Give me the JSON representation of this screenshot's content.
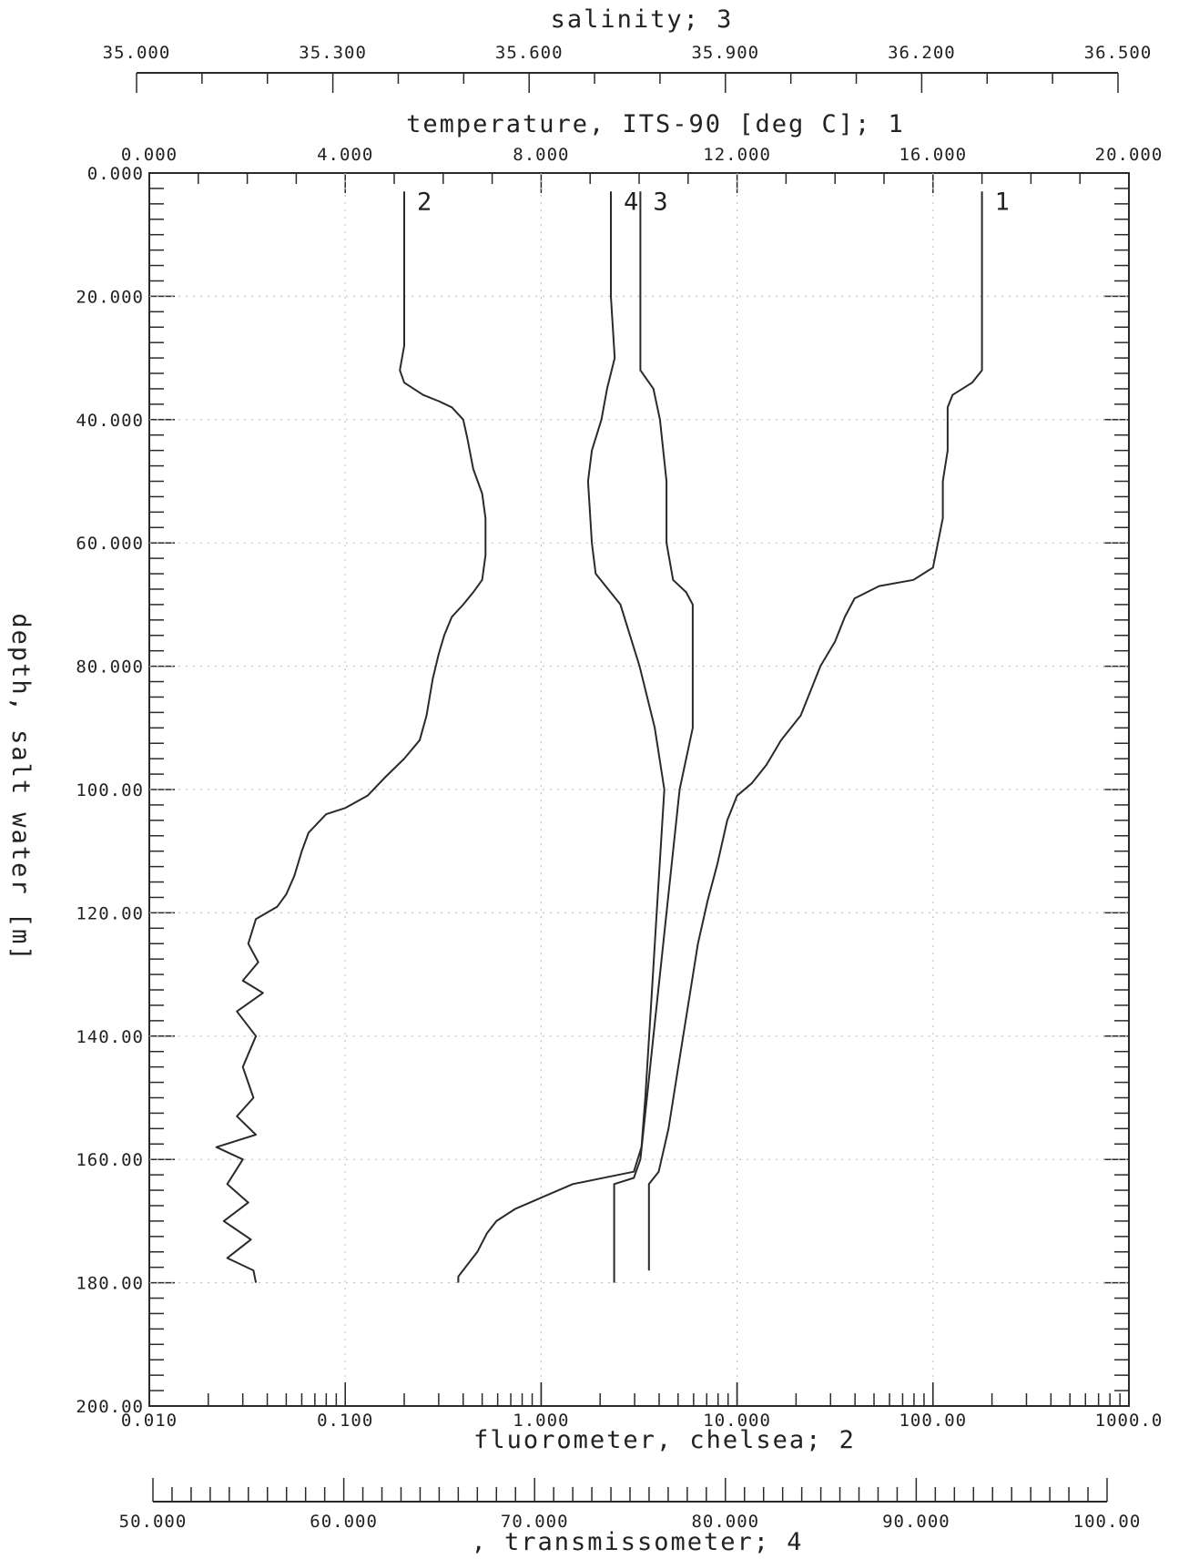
{
  "colors": {
    "ink": "#2a2a2a",
    "paper": "#ffffff",
    "grid": "#b8b8b8"
  },
  "chart_data": {
    "type": "line",
    "grid": true,
    "axes": {
      "depth": {
        "label": "depth, salt water [m]",
        "range": [
          0,
          200
        ],
        "inverted": true,
        "ticks": [
          {
            "value": 0,
            "label": "0.000"
          },
          {
            "value": 20,
            "label": "20.000"
          },
          {
            "value": 40,
            "label": "40.000"
          },
          {
            "value": 60,
            "label": "60.000"
          },
          {
            "value": 80,
            "label": "80.000"
          },
          {
            "value": 100,
            "label": "100.00"
          },
          {
            "value": 120,
            "label": "120.00"
          },
          {
            "value": 140,
            "label": "140.00"
          },
          {
            "value": 160,
            "label": "160.00"
          },
          {
            "value": 180,
            "label": "180.00"
          },
          {
            "value": 200,
            "label": "200.00"
          }
        ]
      },
      "salinity": {
        "label": "salinity; 3",
        "range": [
          35.0,
          36.5
        ],
        "ticks": [
          {
            "value": 35.0,
            "label": "35.000"
          },
          {
            "value": 35.3,
            "label": "35.300"
          },
          {
            "value": 35.6,
            "label": "35.600"
          },
          {
            "value": 35.9,
            "label": "35.900"
          },
          {
            "value": 36.2,
            "label": "36.200"
          },
          {
            "value": 36.5,
            "label": "36.500"
          }
        ]
      },
      "temperature": {
        "label": "temperature, ITS-90 [deg C]; 1",
        "range": [
          0,
          20
        ],
        "ticks": [
          {
            "value": 0,
            "label": "0.000"
          },
          {
            "value": 4,
            "label": "4.000"
          },
          {
            "value": 8,
            "label": "8.000"
          },
          {
            "value": 12,
            "label": "12.000"
          },
          {
            "value": 16,
            "label": "16.000"
          },
          {
            "value": 20,
            "label": "20.000"
          }
        ]
      },
      "fluorometer": {
        "label": "fluorometer, chelsea; 2",
        "scale": "log",
        "range": [
          0.01,
          1000
        ],
        "ticks": [
          {
            "value": 0.01,
            "label": "0.010"
          },
          {
            "value": 0.1,
            "label": "0.100"
          },
          {
            "value": 1,
            "label": "1.000"
          },
          {
            "value": 10,
            "label": "10.000"
          },
          {
            "value": 100,
            "label": "100.00"
          },
          {
            "value": 1000,
            "label": "1000.0"
          }
        ]
      },
      "transmissometer": {
        "label": ", transmissometer; 4",
        "range": [
          50,
          100
        ],
        "ticks": [
          {
            "value": 50,
            "label": "50.000"
          },
          {
            "value": 60,
            "label": "60.000"
          },
          {
            "value": 70,
            "label": "70.000"
          },
          {
            "value": 80,
            "label": "80.000"
          },
          {
            "value": 90,
            "label": "90.000"
          },
          {
            "value": 100,
            "label": "100.00"
          }
        ]
      }
    },
    "series": [
      {
        "name": "1",
        "axis": "temperature",
        "points": [
          [
            17.0,
            3
          ],
          [
            17.0,
            20
          ],
          [
            17.0,
            32
          ],
          [
            16.8,
            34
          ],
          [
            16.4,
            36
          ],
          [
            16.3,
            38
          ],
          [
            16.3,
            45
          ],
          [
            16.2,
            50
          ],
          [
            16.2,
            56
          ],
          [
            16.1,
            60
          ],
          [
            16.0,
            64
          ],
          [
            15.6,
            66
          ],
          [
            14.9,
            67
          ],
          [
            14.4,
            69
          ],
          [
            14.2,
            72
          ],
          [
            14.0,
            76
          ],
          [
            13.7,
            80
          ],
          [
            13.5,
            84
          ],
          [
            13.3,
            88
          ],
          [
            12.9,
            92
          ],
          [
            12.6,
            96
          ],
          [
            12.3,
            99
          ],
          [
            12.0,
            101
          ],
          [
            11.8,
            105
          ],
          [
            11.6,
            112
          ],
          [
            11.4,
            118
          ],
          [
            11.2,
            125
          ],
          [
            11.0,
            135
          ],
          [
            10.8,
            145
          ],
          [
            10.6,
            155
          ],
          [
            10.4,
            162
          ],
          [
            10.2,
            164
          ],
          [
            10.2,
            178
          ]
        ],
        "tag": "1"
      },
      {
        "name": "2",
        "axis": "fluorometer",
        "points": [
          [
            0.2,
            3
          ],
          [
            0.2,
            10
          ],
          [
            0.2,
            20
          ],
          [
            0.2,
            28
          ],
          [
            0.19,
            32
          ],
          [
            0.2,
            34
          ],
          [
            0.25,
            36
          ],
          [
            0.3,
            37
          ],
          [
            0.35,
            38
          ],
          [
            0.4,
            40
          ],
          [
            0.42,
            43
          ],
          [
            0.45,
            48
          ],
          [
            0.5,
            52
          ],
          [
            0.52,
            56
          ],
          [
            0.52,
            62
          ],
          [
            0.5,
            66
          ],
          [
            0.45,
            68
          ],
          [
            0.4,
            70
          ],
          [
            0.35,
            72
          ],
          [
            0.32,
            75
          ],
          [
            0.3,
            78
          ],
          [
            0.28,
            82
          ],
          [
            0.26,
            88
          ],
          [
            0.24,
            92
          ],
          [
            0.2,
            95
          ],
          [
            0.16,
            98
          ],
          [
            0.13,
            101
          ],
          [
            0.1,
            103
          ],
          [
            0.08,
            104
          ],
          [
            0.065,
            107
          ],
          [
            0.06,
            110
          ],
          [
            0.055,
            114
          ],
          [
            0.05,
            117
          ],
          [
            0.045,
            119
          ],
          [
            0.035,
            121
          ],
          [
            0.032,
            125
          ],
          [
            0.036,
            128
          ],
          [
            0.03,
            131
          ],
          [
            0.038,
            133
          ],
          [
            0.028,
            136
          ],
          [
            0.035,
            140
          ],
          [
            0.03,
            145
          ],
          [
            0.034,
            150
          ],
          [
            0.028,
            153
          ],
          [
            0.035,
            156
          ],
          [
            0.022,
            158
          ],
          [
            0.03,
            160
          ],
          [
            0.025,
            164
          ],
          [
            0.032,
            167
          ],
          [
            0.024,
            170
          ],
          [
            0.033,
            173
          ],
          [
            0.025,
            176
          ],
          [
            0.034,
            178
          ],
          [
            0.035,
            180
          ]
        ],
        "tag": "2"
      },
      {
        "name": "3",
        "axis": "salinity",
        "points": [
          [
            35.77,
            3
          ],
          [
            35.77,
            20
          ],
          [
            35.77,
            32
          ],
          [
            35.79,
            35
          ],
          [
            35.8,
            40
          ],
          [
            35.81,
            50
          ],
          [
            35.81,
            60
          ],
          [
            35.82,
            66
          ],
          [
            35.84,
            68
          ],
          [
            35.85,
            70
          ],
          [
            35.85,
            80
          ],
          [
            35.85,
            90
          ],
          [
            35.84,
            95
          ],
          [
            35.83,
            100
          ],
          [
            35.82,
            110
          ],
          [
            35.81,
            120
          ],
          [
            35.8,
            130
          ],
          [
            35.79,
            140
          ],
          [
            35.78,
            150
          ],
          [
            35.77,
            160
          ],
          [
            35.76,
            163
          ],
          [
            35.73,
            164
          ],
          [
            35.73,
            170
          ],
          [
            35.73,
            180
          ]
        ],
        "tag": "3"
      },
      {
        "name": "4",
        "axis": "transmissometer",
        "points": [
          [
            74.0,
            3
          ],
          [
            74.0,
            10
          ],
          [
            74.0,
            20
          ],
          [
            74.2,
            30
          ],
          [
            73.8,
            35
          ],
          [
            73.5,
            40
          ],
          [
            73.0,
            45
          ],
          [
            72.8,
            50
          ],
          [
            73.0,
            60
          ],
          [
            73.2,
            65
          ],
          [
            74.5,
            70
          ],
          [
            75.0,
            75
          ],
          [
            75.5,
            80
          ],
          [
            76.3,
            90
          ],
          [
            76.8,
            100
          ],
          [
            76.6,
            110
          ],
          [
            76.4,
            120
          ],
          [
            76.2,
            130
          ],
          [
            76.0,
            140
          ],
          [
            75.8,
            150
          ],
          [
            75.6,
            158
          ],
          [
            75.2,
            162
          ],
          [
            72.0,
            164
          ],
          [
            70.5,
            166
          ],
          [
            69.0,
            168
          ],
          [
            68.0,
            170
          ],
          [
            67.5,
            172
          ],
          [
            67.0,
            175
          ],
          [
            66.5,
            177
          ],
          [
            66.0,
            179
          ],
          [
            66.0,
            180
          ]
        ],
        "tag": "4"
      }
    ]
  }
}
